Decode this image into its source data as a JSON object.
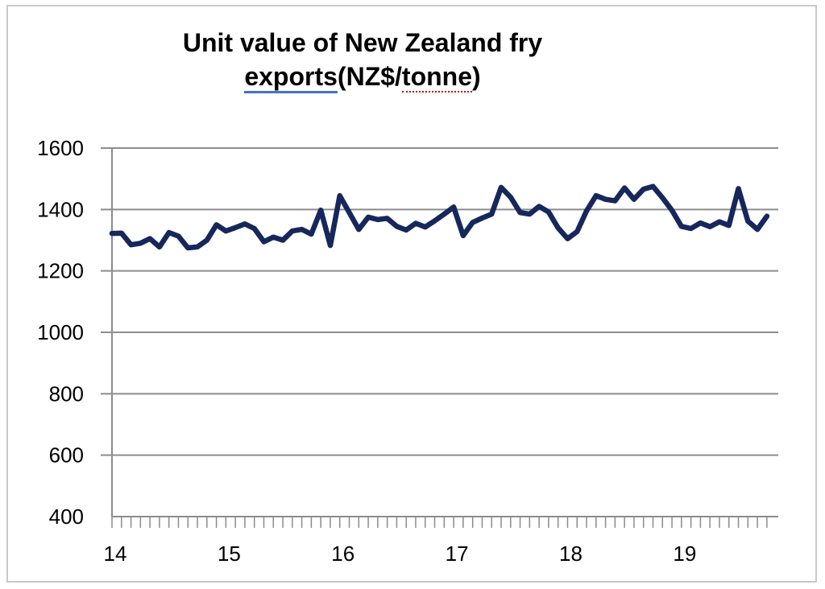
{
  "chart_data": {
    "type": "line",
    "title_line1": "Unit value of New Zealand fry",
    "title_line2_a": "exports",
    "title_line2_b": "(NZ$/",
    "title_line2_c": "tonne",
    "title_line2_d": ")",
    "xlabel": "",
    "ylabel": "",
    "ylim": [
      400,
      1600
    ],
    "yticks": [
      400,
      600,
      800,
      1000,
      1200,
      1400,
      1600
    ],
    "ytick_labels": [
      "400",
      "600",
      "800",
      "1000",
      "1200",
      "1400",
      "1600"
    ],
    "xlim": [
      14,
      19.85
    ],
    "xticks": [
      14,
      15,
      16,
      17,
      18,
      19
    ],
    "xtick_labels": [
      "14",
      "15",
      "16",
      "17",
      "18",
      "19"
    ],
    "grid": true,
    "line_color": "#16275c",
    "grid_color": "#8c8c8c",
    "series": [
      {
        "values": [
          1322,
          1323,
          1285,
          1290,
          1305,
          1278,
          1325,
          1313,
          1275,
          1278,
          1300,
          1350,
          1330,
          1341,
          1353,
          1338,
          1295,
          1310,
          1300,
          1330,
          1335,
          1320,
          1398,
          1283,
          1445,
          1390,
          1335,
          1375,
          1367,
          1371,
          1345,
          1333,
          1355,
          1343,
          1363,
          1385,
          1408,
          1315,
          1358,
          1372,
          1385,
          1472,
          1440,
          1390,
          1385,
          1410,
          1392,
          1340,
          1305,
          1328,
          1395,
          1445,
          1433,
          1428,
          1470,
          1433,
          1466,
          1475,
          1438,
          1397,
          1345,
          1338,
          1356,
          1344,
          1360,
          1348,
          1468,
          1362,
          1335,
          1378
        ]
      }
    ]
  }
}
